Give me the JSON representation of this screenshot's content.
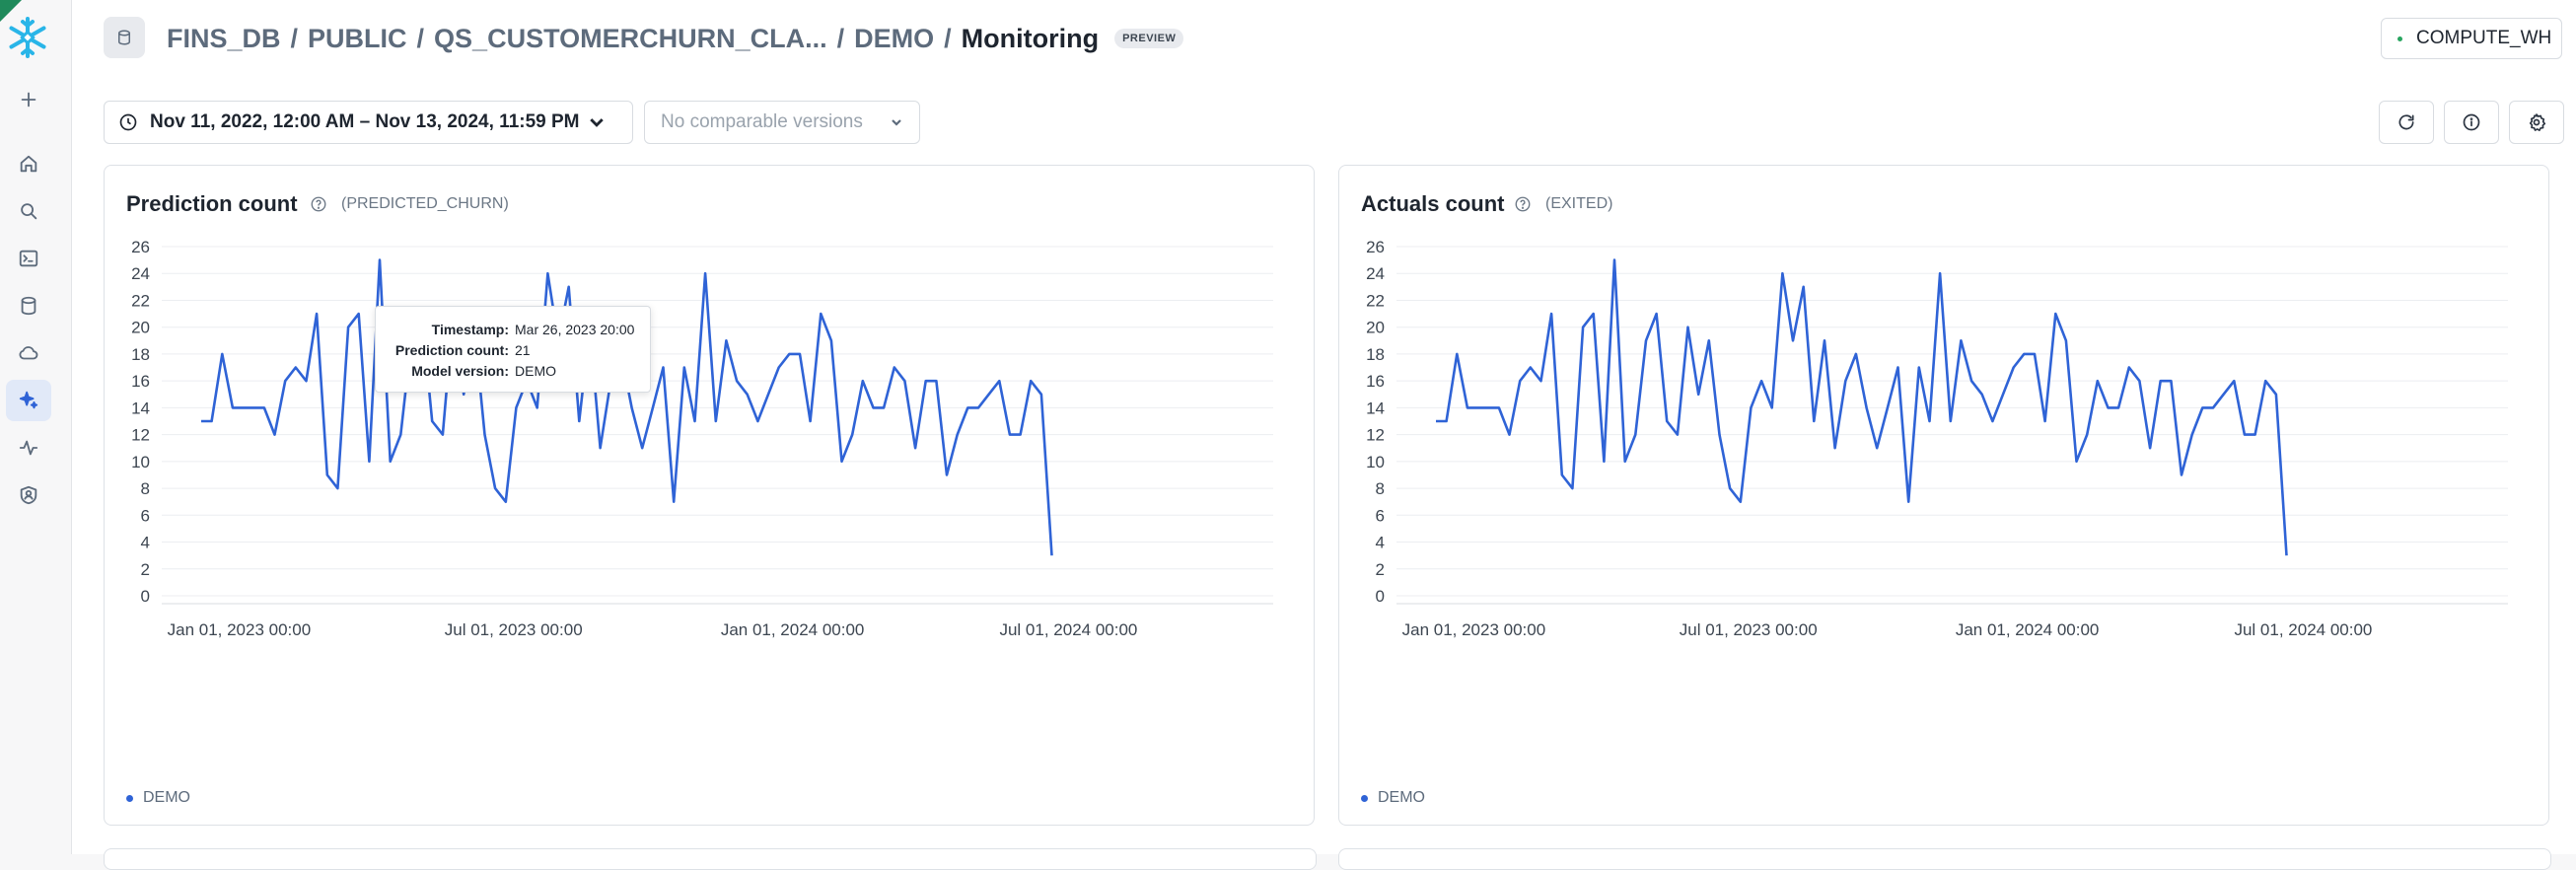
{
  "nav": {
    "items": [
      {
        "name": "add-icon",
        "active": false
      },
      {
        "name": "home-icon",
        "active": false
      },
      {
        "name": "search-icon",
        "active": false
      },
      {
        "name": "terminal-icon",
        "active": false
      },
      {
        "name": "database-icon",
        "active": false
      },
      {
        "name": "cloud-icon",
        "active": false
      },
      {
        "name": "ai-sparkle-icon",
        "active": true
      },
      {
        "name": "activity-icon",
        "active": false
      },
      {
        "name": "shield-user-icon",
        "active": false
      }
    ]
  },
  "header": {
    "breadcrumb": [
      "FINS_DB",
      "PUBLIC",
      "QS_CUSTOMERCHURN_CLA...",
      "DEMO"
    ],
    "title": "Monitoring",
    "badge": "PREVIEW",
    "warehouse": "COMPUTE_WH"
  },
  "toolbar": {
    "date_range": "Nov 11, 2022, 12:00 AM – Nov 13, 2024, 11:59 PM",
    "version_placeholder": "No comparable versions",
    "buttons": [
      "refresh-icon",
      "info-icon",
      "settings-icon"
    ]
  },
  "colors": {
    "accent": "#2f63d6",
    "active_bg": "#e1e9f8",
    "brand": "#29b5e8"
  },
  "panels": [
    {
      "title": "Prediction count",
      "column": "(PREDICTED_CHURN)",
      "legend": "DEMO",
      "tooltip": {
        "timestamp_label": "Timestamp:",
        "timestamp": "Mar 26, 2023 20:00",
        "count_label": "Prediction count:",
        "count": "21",
        "version_label": "Model version:",
        "version": "DEMO"
      }
    },
    {
      "title": "Actuals count",
      "column": "(EXITED)",
      "legend": "DEMO"
    }
  ],
  "chart_data": [
    {
      "type": "line",
      "title": "Prediction count",
      "x_ticks": [
        "Jan 01, 2023 00:00",
        "Jul 01, 2023 00:00",
        "Jan 01, 2024 00:00",
        "Jul 01, 2024 00:00"
      ],
      "y_ticks": [
        0,
        2,
        4,
        6,
        8,
        10,
        12,
        14,
        16,
        18,
        20,
        22,
        24,
        26
      ],
      "ylim": [
        0,
        26
      ],
      "x_range": [
        "2022-11-11",
        "2024-11-13"
      ],
      "grid": true,
      "series": [
        {
          "name": "DEMO",
          "values": [
            13,
            13,
            18,
            14,
            14,
            14,
            14,
            12,
            16,
            17,
            16,
            21,
            9,
            8,
            20,
            21,
            10,
            25,
            10,
            12,
            19,
            21,
            13,
            12,
            21,
            15,
            20,
            12,
            8,
            7,
            14,
            16,
            14,
            24,
            19,
            23,
            13,
            20,
            11,
            16,
            18,
            14,
            11,
            14,
            17,
            7,
            17,
            13,
            24,
            13,
            19,
            16,
            15,
            13,
            15,
            17,
            18,
            18,
            13,
            21,
            19,
            10,
            12,
            16,
            14,
            14,
            17,
            16,
            11,
            16,
            16,
            9,
            12,
            14,
            14,
            15,
            16,
            12,
            12,
            16,
            15,
            3
          ],
          "x_start": "2022-12-07",
          "x_end": "2024-06-20"
        }
      ]
    },
    {
      "type": "line",
      "title": "Actuals count",
      "x_ticks": [
        "Jan 01, 2023 00:00",
        "Jul 01, 2023 00:00",
        "Jan 01, 2024 00:00",
        "Jul 01, 2024 00:00"
      ],
      "y_ticks": [
        0,
        2,
        4,
        6,
        8,
        10,
        12,
        14,
        16,
        18,
        20,
        22,
        24,
        26
      ],
      "ylim": [
        0,
        26
      ],
      "x_range": [
        "2022-11-11",
        "2024-11-13"
      ],
      "grid": true,
      "series": [
        {
          "name": "DEMO",
          "values": [
            13,
            13,
            18,
            14,
            14,
            14,
            14,
            12,
            16,
            17,
            16,
            21,
            9,
            8,
            20,
            21,
            10,
            25,
            10,
            12,
            19,
            21,
            13,
            12,
            20,
            15,
            19,
            12,
            8,
            7,
            14,
            16,
            14,
            24,
            19,
            23,
            13,
            19,
            11,
            16,
            18,
            14,
            11,
            14,
            17,
            7,
            17,
            13,
            24,
            13,
            19,
            16,
            15,
            13,
            15,
            17,
            18,
            18,
            13,
            21,
            19,
            10,
            12,
            16,
            14,
            14,
            17,
            16,
            11,
            16,
            16,
            9,
            12,
            14,
            14,
            15,
            16,
            12,
            12,
            16,
            15,
            3
          ],
          "x_start": "2022-12-07",
          "x_end": "2024-06-20"
        }
      ]
    }
  ]
}
